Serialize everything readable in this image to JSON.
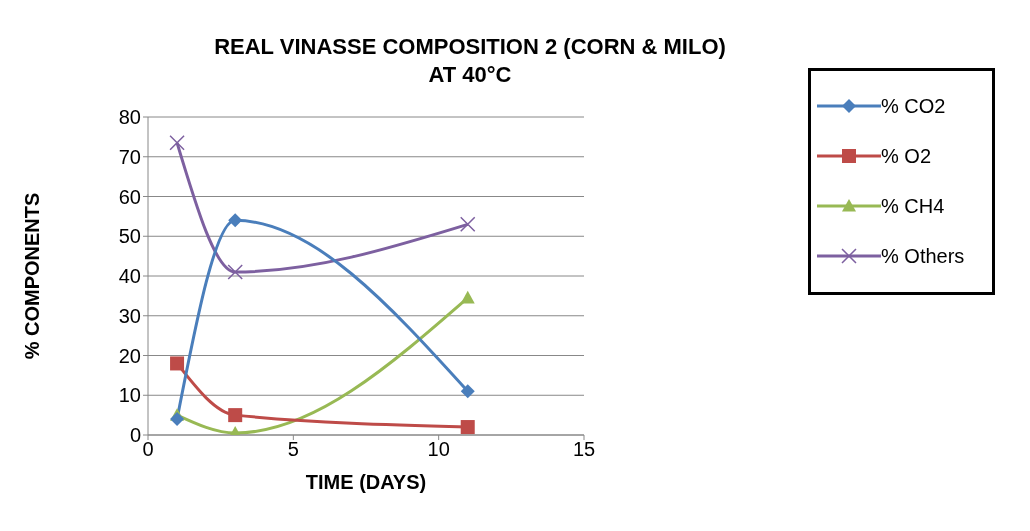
{
  "chart_data": {
    "type": "line",
    "title": "REAL VINASSE COMPOSITION 2 (CORN & MILO)\nAT 40°C",
    "xlabel": "TIME (DAYS)",
    "ylabel": "% COMPONENTS",
    "xlim": [
      0,
      15
    ],
    "xticks": [
      0,
      5,
      10,
      15
    ],
    "ylim": [
      0,
      80
    ],
    "yticks": [
      0,
      10,
      20,
      30,
      40,
      50,
      60,
      70,
      80
    ],
    "grid": "y",
    "legend": "right",
    "series": [
      {
        "name": "% CO2",
        "color": "#4a7ebb",
        "marker": "diamond",
        "x": [
          1,
          3,
          11
        ],
        "values": [
          4,
          54,
          11
        ]
      },
      {
        "name": "% O2",
        "color": "#be4b48",
        "marker": "square",
        "x": [
          1,
          3,
          11
        ],
        "values": [
          18,
          5,
          2
        ]
      },
      {
        "name": "% CH4",
        "color": "#98b954",
        "marker": "triangle",
        "x": [
          1,
          3,
          11
        ],
        "values": [
          5,
          0.5,
          34.5
        ]
      },
      {
        "name": "% Others",
        "color": "#7d60a0",
        "marker": "cross",
        "x": [
          1,
          3,
          11
        ],
        "values": [
          73.5,
          41,
          53
        ]
      }
    ]
  }
}
